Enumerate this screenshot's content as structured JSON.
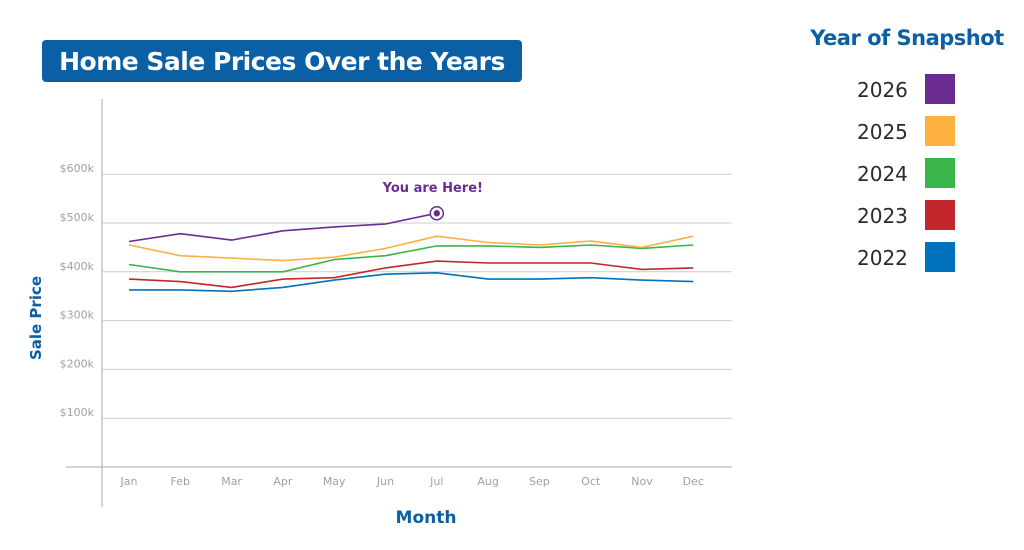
{
  "chart_data": {
    "type": "line",
    "title": "Home Sale Prices Over the Years",
    "xlabel": "Month",
    "ylabel": "Sale Price",
    "legend_title": "Year of Snapshot",
    "legend_position": "right",
    "grid": true,
    "categories": [
      "Jan",
      "Feb",
      "Mar",
      "Apr",
      "May",
      "Jun",
      "Jul",
      "Aug",
      "Sep",
      "Oct",
      "Nov",
      "Dec"
    ],
    "y_ticks": [
      {
        "value": 100000,
        "label": "$100k"
      },
      {
        "value": 200000,
        "label": "$200k"
      },
      {
        "value": 300000,
        "label": "$300k"
      },
      {
        "value": 400000,
        "label": "$400k"
      },
      {
        "value": 500000,
        "label": "$500k"
      },
      {
        "value": 600000,
        "label": "$600k"
      }
    ],
    "ylim": [
      0,
      600000
    ],
    "series": [
      {
        "name": "2026",
        "color": "#6a2c91",
        "values": [
          462000,
          478000,
          465000,
          484000,
          492000,
          498000,
          520000,
          null,
          null,
          null,
          null,
          null
        ]
      },
      {
        "name": "2025",
        "color": "#fbb040",
        "values": [
          455000,
          433000,
          428000,
          423000,
          430000,
          448000,
          473000,
          460000,
          455000,
          463000,
          450000,
          473000
        ]
      },
      {
        "name": "2024",
        "color": "#39b54a",
        "values": [
          415000,
          400000,
          400000,
          400000,
          425000,
          433000,
          453000,
          453000,
          450000,
          455000,
          448000,
          455000
        ]
      },
      {
        "name": "2023",
        "color": "#c1272d",
        "values": [
          385000,
          380000,
          368000,
          385000,
          388000,
          408000,
          422000,
          418000,
          418000,
          418000,
          405000,
          408000
        ]
      },
      {
        "name": "2022",
        "color": "#0071bc",
        "values": [
          363000,
          363000,
          360000,
          368000,
          383000,
          395000,
          398000,
          385000,
          385000,
          388000,
          383000,
          380000
        ]
      }
    ],
    "annotation": {
      "text": "You are Here!",
      "category": "Jul",
      "series": "2026"
    }
  }
}
